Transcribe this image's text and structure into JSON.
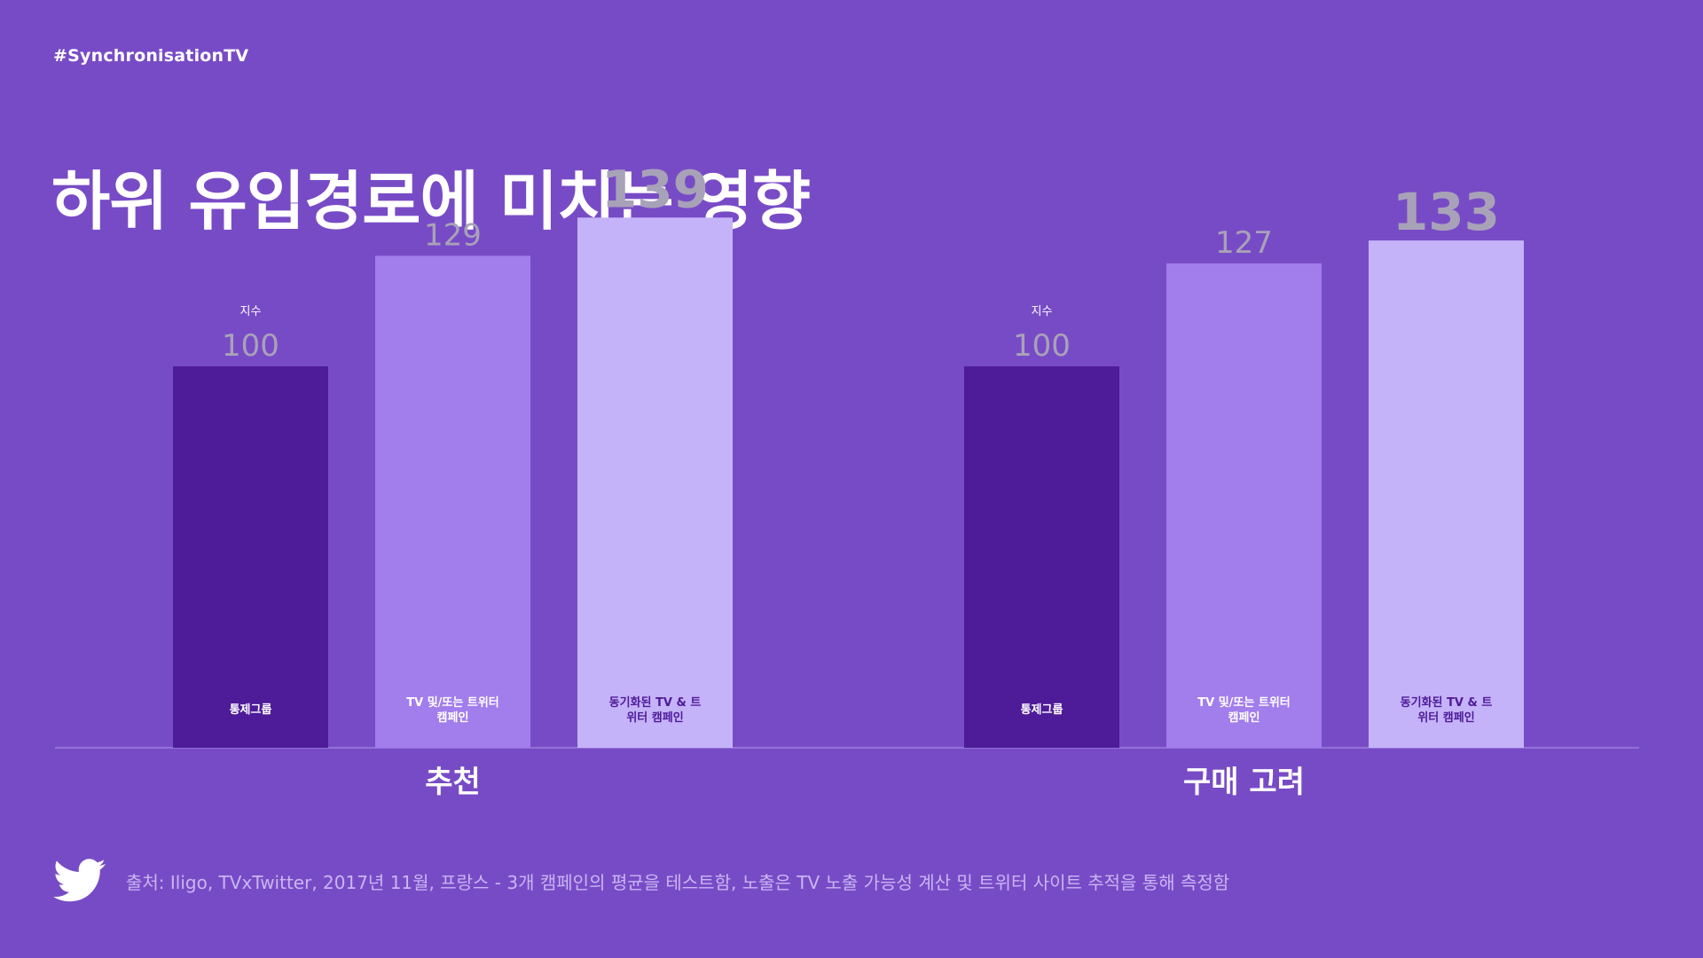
{
  "hashtag": "#SynchronisationTV",
  "title": "하위 유입경로에 미치는 영향",
  "source": "출처: Iligo, TVxTwitter, 2017년 11월, 프랑스 - 3개 캠페인의 평균을 테스트함, 노출은 TV 노출 가능성 계산 및 트위터 사이트 추적을 통해 측정함",
  "colors": {
    "background": "#784bc6",
    "control": "#4e1b99",
    "tv_or_twitter": "#a27dec",
    "synchronized": "#c5b3f9",
    "value_label": "#a8a2b8",
    "baseline": "#9b7fdc"
  },
  "chart_data": [
    {
      "type": "bar",
      "title": "",
      "xlabel": "추천",
      "ylabel": "",
      "categories": [
        "통제그룹",
        "TV 및/또는 트위터 캠페인",
        "동기화된 TV & 트위터 캠페인"
      ],
      "category_lines": [
        [
          "통제그룹"
        ],
        [
          "TV 및/또는 트위터",
          "캠페인"
        ],
        [
          "동기화된 TV & 트",
          "위터 캠페인"
        ]
      ],
      "values": [
        100,
        129,
        139
      ],
      "index_label": "지수",
      "ylim": [
        0,
        143
      ],
      "grid": false
    },
    {
      "type": "bar",
      "title": "",
      "xlabel": "구매 고려",
      "ylabel": "",
      "categories": [
        "통제그룹",
        "TV 및/또는 트위터 캠페인",
        "동기화된 TV & 트위터 캠페인"
      ],
      "category_lines": [
        [
          "통제그룹"
        ],
        [
          "TV 및/또는 트위터",
          "캠페인"
        ],
        [
          "동기화된 TV & 트",
          "위터 캠페인"
        ]
      ],
      "values": [
        100,
        127,
        133
      ],
      "index_label": "지수",
      "ylim": [
        0,
        143
      ],
      "grid": false
    }
  ]
}
